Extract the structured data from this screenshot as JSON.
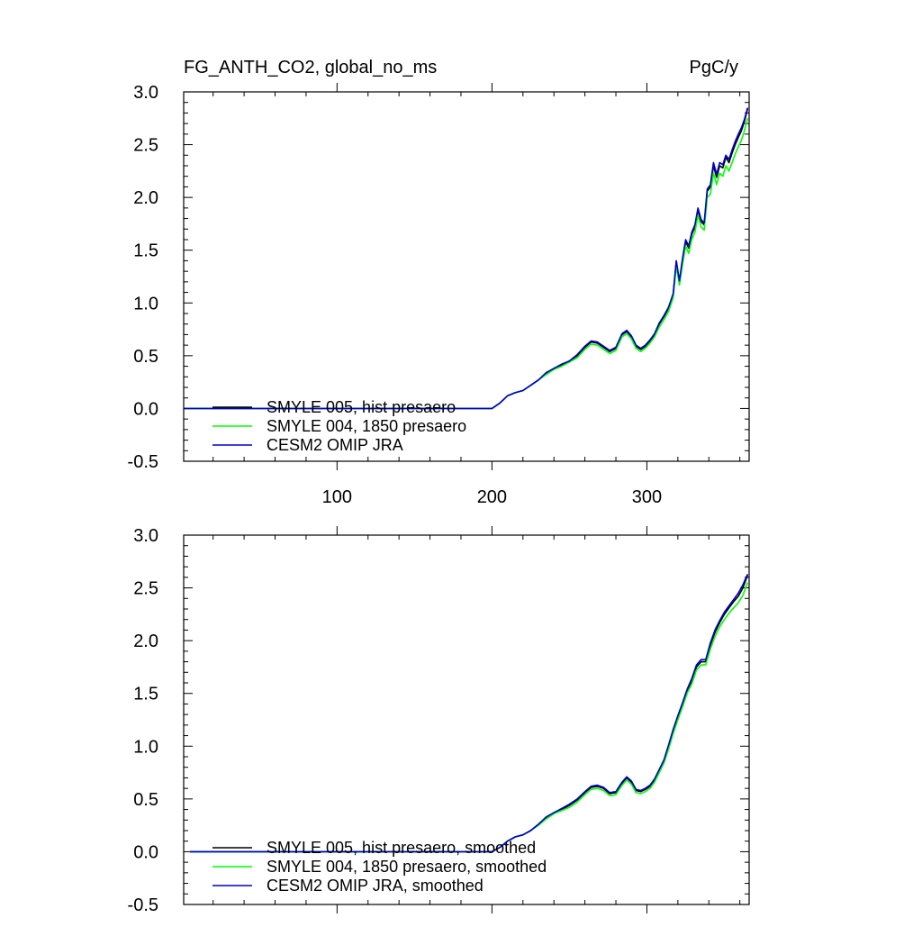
{
  "figure": {
    "title_left": "FG_ANTH_CO2, global_no_ms",
    "title_right": "PgC/y"
  },
  "chart_data": [
    {
      "type": "line",
      "panel": "top",
      "xlim": [
        1,
        366
      ],
      "ylim": [
        -0.5,
        3.0
      ],
      "x_ticks": [
        100,
        200,
        300
      ],
      "x_tick_labels": [
        "100",
        "200",
        "300"
      ],
      "y_ticks": [
        -0.5,
        0.0,
        0.5,
        1.0,
        1.5,
        2.0,
        2.5,
        3.0
      ],
      "y_tick_labels": [
        "-0.5",
        "0.0",
        "0.5",
        "1.0",
        "1.5",
        "2.0",
        "2.5",
        "3.0"
      ],
      "legend_position": "bottom-left",
      "series": [
        {
          "name": "SMYLE 005, hist presaero",
          "color": "#000000",
          "x": [
            1,
            200,
            205,
            210,
            215,
            220,
            225,
            230,
            235,
            240,
            245,
            250,
            255,
            260,
            264,
            268,
            272,
            276,
            280,
            284,
            287,
            290,
            293,
            296,
            299,
            302,
            305,
            308,
            311,
            314,
            317,
            319,
            321,
            323,
            325,
            327,
            329,
            331,
            333,
            335,
            337,
            339,
            341,
            343,
            345,
            347,
            349,
            351,
            353,
            355,
            357,
            359,
            361,
            363,
            365
          ],
          "y": [
            0.0,
            0.0,
            0.05,
            0.12,
            0.15,
            0.17,
            0.22,
            0.27,
            0.33,
            0.38,
            0.41,
            0.45,
            0.5,
            0.58,
            0.63,
            0.62,
            0.58,
            0.54,
            0.57,
            0.7,
            0.73,
            0.68,
            0.59,
            0.56,
            0.59,
            0.64,
            0.7,
            0.8,
            0.87,
            0.95,
            1.08,
            1.39,
            1.2,
            1.4,
            1.58,
            1.52,
            1.65,
            1.72,
            1.88,
            1.77,
            1.74,
            2.06,
            2.1,
            2.3,
            2.19,
            2.3,
            2.28,
            2.38,
            2.33,
            2.42,
            2.5,
            2.57,
            2.63,
            2.72,
            2.84
          ]
        },
        {
          "name": "SMYLE 004, 1850 presaero",
          "color": "#00ff00",
          "x": [
            1,
            200,
            205,
            210,
            215,
            220,
            225,
            230,
            235,
            240,
            245,
            250,
            255,
            260,
            264,
            268,
            272,
            276,
            280,
            284,
            287,
            290,
            293,
            296,
            299,
            302,
            305,
            308,
            311,
            314,
            317,
            319,
            321,
            323,
            325,
            327,
            329,
            331,
            333,
            335,
            337,
            339,
            341,
            343,
            345,
            347,
            349,
            351,
            353,
            355,
            357,
            359,
            361,
            363,
            365
          ],
          "y": [
            0.0,
            0.0,
            0.05,
            0.12,
            0.15,
            0.17,
            0.22,
            0.27,
            0.32,
            0.37,
            0.4,
            0.44,
            0.48,
            0.56,
            0.61,
            0.6,
            0.56,
            0.52,
            0.55,
            0.68,
            0.71,
            0.66,
            0.57,
            0.54,
            0.57,
            0.62,
            0.68,
            0.77,
            0.84,
            0.92,
            1.05,
            1.35,
            1.17,
            1.36,
            1.54,
            1.47,
            1.6,
            1.67,
            1.83,
            1.72,
            1.69,
            2.0,
            2.03,
            2.23,
            2.12,
            2.23,
            2.2,
            2.3,
            2.25,
            2.33,
            2.41,
            2.48,
            2.54,
            2.63,
            2.75
          ]
        },
        {
          "name": "CESM2 OMIP JRA",
          "color": "#0000cc",
          "x": [
            1,
            200,
            205,
            210,
            215,
            220,
            225,
            230,
            235,
            240,
            245,
            250,
            255,
            260,
            264,
            268,
            272,
            276,
            280,
            284,
            287,
            290,
            293,
            296,
            299,
            302,
            305,
            308,
            311,
            314,
            317,
            319,
            321,
            323,
            325,
            327,
            329,
            331,
            333,
            335,
            337,
            339,
            341,
            343,
            345,
            347,
            349,
            351,
            353,
            355,
            357,
            359,
            361,
            363,
            365
          ],
          "y": [
            0.0,
            0.0,
            0.05,
            0.12,
            0.15,
            0.17,
            0.22,
            0.27,
            0.34,
            0.38,
            0.42,
            0.45,
            0.51,
            0.59,
            0.64,
            0.63,
            0.59,
            0.55,
            0.58,
            0.71,
            0.74,
            0.69,
            0.6,
            0.57,
            0.6,
            0.65,
            0.71,
            0.81,
            0.88,
            0.96,
            1.09,
            1.4,
            1.21,
            1.42,
            1.6,
            1.54,
            1.67,
            1.74,
            1.9,
            1.79,
            1.76,
            2.08,
            2.12,
            2.33,
            2.22,
            2.33,
            2.31,
            2.4,
            2.36,
            2.45,
            2.53,
            2.6,
            2.66,
            2.74,
            2.85
          ]
        }
      ]
    },
    {
      "type": "line",
      "panel": "bottom",
      "xlim": [
        1,
        366
      ],
      "ylim": [
        -0.5,
        3.0
      ],
      "x_ticks": [
        100,
        200,
        300
      ],
      "x_tick_labels": [],
      "y_ticks": [
        -0.5,
        0.0,
        0.5,
        1.0,
        1.5,
        2.0,
        2.5,
        3.0
      ],
      "y_tick_labels": [
        "-0.5",
        "0.0",
        "0.5",
        "1.0",
        "1.5",
        "2.0",
        "2.5",
        "3.0"
      ],
      "legend_position": "bottom-left",
      "series": [
        {
          "name": "SMYLE 005, hist presaero, smoothed",
          "color": "#000000",
          "x": [
            5,
            200,
            205,
            210,
            215,
            220,
            225,
            230,
            235,
            240,
            245,
            250,
            255,
            260,
            264,
            268,
            272,
            276,
            280,
            284,
            287,
            290,
            293,
            296,
            299,
            302,
            305,
            308,
            311,
            314,
            317,
            320,
            323,
            326,
            329,
            332,
            335,
            338,
            341,
            344,
            347,
            350,
            353,
            356,
            359,
            362,
            365
          ],
          "y": [
            0.0,
            0.0,
            0.04,
            0.1,
            0.14,
            0.16,
            0.2,
            0.26,
            0.32,
            0.37,
            0.4,
            0.44,
            0.49,
            0.56,
            0.61,
            0.62,
            0.6,
            0.55,
            0.56,
            0.65,
            0.7,
            0.66,
            0.58,
            0.57,
            0.59,
            0.62,
            0.68,
            0.77,
            0.86,
            1.0,
            1.15,
            1.28,
            1.4,
            1.53,
            1.62,
            1.75,
            1.8,
            1.8,
            1.96,
            2.08,
            2.17,
            2.25,
            2.31,
            2.37,
            2.42,
            2.5,
            2.62
          ]
        },
        {
          "name": "SMYLE 004, 1850 presaero, smoothed",
          "color": "#00ff00",
          "x": [
            5,
            200,
            205,
            210,
            215,
            220,
            225,
            230,
            235,
            240,
            245,
            250,
            255,
            260,
            264,
            268,
            272,
            276,
            280,
            284,
            287,
            290,
            293,
            296,
            299,
            302,
            305,
            308,
            311,
            314,
            317,
            320,
            323,
            326,
            329,
            332,
            335,
            338,
            341,
            344,
            347,
            350,
            353,
            356,
            359,
            362,
            365
          ],
          "y": [
            0.0,
            0.0,
            0.04,
            0.1,
            0.14,
            0.16,
            0.2,
            0.25,
            0.31,
            0.36,
            0.39,
            0.42,
            0.47,
            0.54,
            0.59,
            0.6,
            0.58,
            0.53,
            0.54,
            0.63,
            0.68,
            0.64,
            0.56,
            0.55,
            0.57,
            0.6,
            0.66,
            0.75,
            0.84,
            0.97,
            1.12,
            1.25,
            1.37,
            1.5,
            1.59,
            1.72,
            1.77,
            1.77,
            1.92,
            2.04,
            2.13,
            2.2,
            2.26,
            2.31,
            2.36,
            2.43,
            2.55
          ]
        },
        {
          "name": "CESM2 OMIP JRA, smoothed",
          "color": "#0000cc",
          "x": [
            5,
            200,
            205,
            210,
            215,
            220,
            225,
            230,
            235,
            240,
            245,
            250,
            255,
            260,
            264,
            268,
            272,
            276,
            280,
            284,
            287,
            290,
            293,
            296,
            299,
            302,
            305,
            308,
            311,
            314,
            317,
            320,
            323,
            326,
            329,
            332,
            335,
            338,
            341,
            344,
            347,
            350,
            353,
            356,
            359,
            362,
            365
          ],
          "y": [
            0.0,
            0.0,
            0.04,
            0.1,
            0.14,
            0.16,
            0.2,
            0.26,
            0.33,
            0.37,
            0.41,
            0.45,
            0.5,
            0.57,
            0.62,
            0.63,
            0.61,
            0.56,
            0.57,
            0.66,
            0.71,
            0.67,
            0.59,
            0.58,
            0.6,
            0.63,
            0.69,
            0.78,
            0.87,
            1.01,
            1.16,
            1.29,
            1.41,
            1.54,
            1.64,
            1.77,
            1.82,
            1.82,
            1.98,
            2.1,
            2.19,
            2.27,
            2.33,
            2.39,
            2.45,
            2.53,
            2.63
          ]
        }
      ]
    }
  ]
}
